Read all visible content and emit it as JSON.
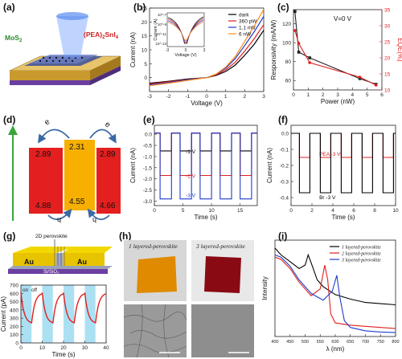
{
  "panels": {
    "a": {
      "label": "(a)",
      "left_material": "MoS",
      "left_sub": "2",
      "right_material": "(PEA)",
      "right_sub1": "2",
      "right_rest": "SnI",
      "right_sub2": "4"
    },
    "b": {
      "label": "(b)"
    },
    "c": {
      "label": "(c)",
      "annotation": "V=0 V"
    },
    "d": {
      "label": "(d)",
      "levels": {
        "left_top": "2.89",
        "left_bottom": "4.88",
        "center_top": "2.31",
        "center_bottom": "4.55",
        "right_top": "2.89",
        "right_bottom": "4.66"
      },
      "e_symbol": "e",
      "h_symbol": "h"
    },
    "e": {
      "label": "(e)"
    },
    "f": {
      "label": "(f)"
    },
    "g": {
      "label": "(g)",
      "top_title": "2D perovskite",
      "electrode": "Au",
      "substrate": "Si/SiO",
      "substrate_sub": "2",
      "onoff_on": "on",
      "onoff_off": "off"
    },
    "h": {
      "label": "(h)",
      "left_title": "1 layered-perovskite",
      "right_title": "3 layered-perovskite"
    },
    "i": {
      "label": "(i)"
    }
  },
  "chart_data": [
    {
      "id": "b",
      "type": "line",
      "xlabel": "Voltage (V)",
      "ylabel": "Current (nA)",
      "xlim": [
        -3,
        3
      ],
      "ylim": [
        -5,
        25
      ],
      "xticks": [
        -3,
        -2,
        -1,
        0,
        1,
        2,
        3
      ],
      "yticks": [
        0,
        5,
        10,
        15,
        20,
        25
      ],
      "legend": "top-left",
      "series": [
        {
          "name": "dark",
          "color": "#000000",
          "x": [
            -3,
            -2,
            -1,
            0,
            0.5,
            1,
            1.5,
            2,
            2.5,
            3
          ],
          "y": [
            -2,
            -1.3,
            -0.5,
            0,
            0.8,
            2.2,
            4.5,
            8,
            12,
            17
          ]
        },
        {
          "name": "360 pW",
          "color": "#e02020",
          "x": [
            -3,
            -2,
            -1,
            0,
            0.5,
            1,
            1.5,
            2,
            2.5,
            3
          ],
          "y": [
            -2.3,
            -1.5,
            -0.7,
            0,
            1,
            2.8,
            5.5,
            9.5,
            14,
            19
          ]
        },
        {
          "name": "1.1 nW",
          "color": "#1e3ccc",
          "x": [
            -3,
            -2,
            -1,
            0,
            0.5,
            1,
            1.5,
            2,
            2.5,
            3
          ],
          "y": [
            -2.6,
            -1.8,
            -0.8,
            0,
            1.2,
            3.4,
            6.8,
            11.5,
            16.5,
            22
          ]
        },
        {
          "name": "6 nW",
          "color": "#ff8c1a",
          "x": [
            -3,
            -2,
            -1,
            0,
            0.5,
            1,
            1.5,
            2,
            2.5,
            3
          ],
          "y": [
            -2.9,
            -2,
            -1,
            0,
            1.3,
            3.8,
            7.5,
            13,
            18.5,
            24.5
          ]
        }
      ],
      "inset": {
        "xlabel": "Voltage (V)",
        "ylabel": "Current (A)",
        "xticks": [
          -3,
          0,
          3
        ],
        "ytick_labels": [
          "10^-7",
          "10^-9",
          "10^-11",
          "10^-13"
        ]
      }
    },
    {
      "id": "c",
      "type": "line",
      "xlabel": "Power (nW)",
      "ylabel": "Responsivity (mA/W)",
      "y2label": "EQE(%)",
      "xlim": [
        0,
        6
      ],
      "ylim": [
        50,
        135
      ],
      "y2lim": [
        10,
        35
      ],
      "xticks": [
        0,
        1,
        2,
        3,
        4,
        5,
        6
      ],
      "yticks": [
        60,
        80,
        100,
        120
      ],
      "y2ticks": [
        10,
        15,
        20,
        25,
        30,
        35
      ],
      "series": [
        {
          "name": "Responsivity",
          "color": "#222222",
          "axis": "left",
          "x": [
            0.1,
            0.36,
            1.1,
            4.5,
            5.6
          ],
          "y": [
            133,
            90,
            84,
            62,
            56
          ]
        },
        {
          "name": "EQE",
          "color": "#e02020",
          "axis": "right",
          "x": [
            0.1,
            0.36,
            1.1,
            4.5,
            5.6
          ],
          "y": [
            28.5,
            24.5,
            18.5,
            14,
            11.5
          ]
        }
      ]
    },
    {
      "id": "e",
      "type": "line",
      "xlabel": "Time (s)",
      "ylabel": "Current (nA)",
      "xlim": [
        0,
        18
      ],
      "ylim": [
        -3.2,
        0.4
      ],
      "xticks": [
        0,
        5,
        10,
        15
      ],
      "yticks": [
        0.0,
        -0.5,
        -1.0,
        -1.5,
        -2.0,
        -2.5,
        -3.0
      ],
      "annotations": [
        "-1 V",
        "-2 V",
        "-3 V"
      ],
      "series": [
        {
          "name": "-1 V",
          "color": "#000000",
          "low": -0.75,
          "high": 0.05
        },
        {
          "name": "-2 V",
          "color": "#e02020",
          "low": -1.85,
          "high": 0.05
        },
        {
          "name": "-3 V",
          "color": "#1e3ccc",
          "low": -2.9,
          "high": 0.05
        }
      ],
      "switch_times": [
        1,
        3,
        4.5,
        6.5,
        8,
        10,
        11.5,
        13.5,
        15,
        17
      ]
    },
    {
      "id": "f",
      "type": "line",
      "xlabel": "Time (s)",
      "ylabel": "Current (nA)",
      "xlim": [
        0,
        10
      ],
      "ylim": [
        -0.45,
        0.05
      ],
      "xticks": [
        0,
        2,
        4,
        6,
        8,
        10
      ],
      "yticks": [
        0.0,
        -0.1,
        -0.2,
        -0.3,
        -0.4
      ],
      "annotations": [
        "PEA -3 V",
        "Br -3 V"
      ],
      "series": [
        {
          "name": "PEA -3 V",
          "color": "#e02020",
          "low": -0.15,
          "high": 0.0
        },
        {
          "name": "Br -3 V",
          "color": "#000000",
          "low": -0.37,
          "high": 0.0
        }
      ],
      "switch_times": [
        0.8,
        1.8,
        2.8,
        3.8,
        4.8,
        5.8,
        6.8,
        7.8,
        8.8,
        9.8
      ]
    },
    {
      "id": "g",
      "type": "line",
      "xlabel": "Time (s)",
      "ylabel": "Current (pA)",
      "xlim": [
        0,
        40
      ],
      "ylim": [
        0,
        700
      ],
      "xticks": [
        0,
        10,
        20,
        30,
        40
      ],
      "yticks": [
        0,
        100,
        200,
        300,
        400,
        500,
        600,
        700
      ],
      "on_intervals": [
        [
          0,
          5
        ],
        [
          10,
          15
        ],
        [
          20,
          25
        ],
        [
          30,
          35
        ]
      ],
      "series": [
        {
          "name": "current",
          "color": "#e02020"
        }
      ]
    },
    {
      "id": "i",
      "type": "line",
      "xlabel": "λ (nm)",
      "ylabel": "Intensity",
      "xlim": [
        400,
        800
      ],
      "xticks": [
        400,
        450,
        500,
        550,
        600,
        650,
        700,
        750,
        800
      ],
      "legend": "top-right",
      "series": [
        {
          "name": "1 layered-perovskite",
          "color": "#000000",
          "x": [
            400,
            420,
            450,
            480,
            500,
            510,
            520,
            540,
            560,
            600,
            650,
            700,
            750,
            800
          ],
          "y": [
            0.78,
            0.72,
            0.66,
            0.6,
            0.63,
            0.72,
            0.65,
            0.5,
            0.44,
            0.37,
            0.33,
            0.3,
            0.29,
            0.28
          ]
        },
        {
          "name": "2 layered-perovskite",
          "color": "#e02020",
          "x": [
            400,
            420,
            450,
            480,
            520,
            550,
            565,
            575,
            585,
            600,
            650,
            700,
            750,
            800
          ],
          "y": [
            0.7,
            0.68,
            0.6,
            0.48,
            0.36,
            0.42,
            0.63,
            0.5,
            0.2,
            0.12,
            0.1,
            0.09,
            0.08,
            0.07
          ]
        },
        {
          "name": "3 layered-perovskite",
          "color": "#1e3ccc",
          "x": [
            400,
            420,
            450,
            480,
            520,
            560,
            590,
            605,
            615,
            630,
            650,
            700,
            750,
            800
          ],
          "y": [
            0.72,
            0.7,
            0.62,
            0.5,
            0.38,
            0.32,
            0.4,
            0.54,
            0.35,
            0.14,
            0.08,
            0.05,
            0.04,
            0.035
          ]
        }
      ]
    }
  ]
}
